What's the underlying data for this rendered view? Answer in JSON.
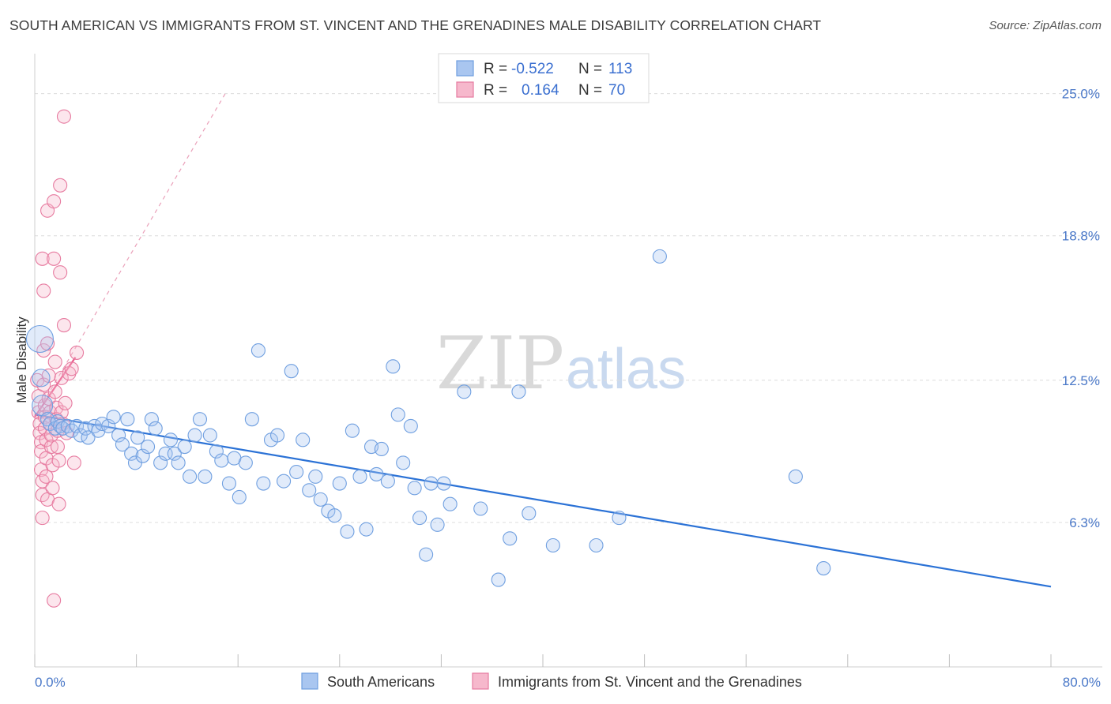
{
  "title": "SOUTH AMERICAN VS IMMIGRANTS FROM ST. VINCENT AND THE GRENADINES MALE DISABILITY CORRELATION CHART",
  "source": "Source: ZipAtlas.com",
  "watermark": {
    "zip": "ZIP",
    "atlas": "atlas"
  },
  "colors": {
    "blue": "#6f9fe0",
    "blue_fill": "#a9c6f0",
    "blue_line": "#2b72d6",
    "pink": "#e77ba0",
    "pink_fill": "#f6b8cc",
    "pink_line": "#e8588a",
    "tick_text": "#4a78c8"
  },
  "legend": {
    "rows": [
      {
        "r_label": "R =",
        "r_value": "-0.522",
        "n_label": "N =",
        "n_value": "113"
      },
      {
        "r_label": "R =",
        "r_value": "0.164",
        "n_label": "N =",
        "n_value": "70"
      }
    ]
  },
  "bottom_legend": [
    "South Americans",
    "Immigrants from St. Vincent and the Grenadines"
  ],
  "chart_data": {
    "type": "scatter",
    "ylabel": "Male Disability",
    "xlabel": "",
    "xlim": [
      0,
      80
    ],
    "ylim": [
      0,
      26.5
    ],
    "x_tick_labels": [
      "0.0%",
      "80.0%"
    ],
    "y_ticks": [
      6.3,
      12.5,
      18.8,
      25.0
    ],
    "y_tick_labels": [
      "6.3%",
      "12.5%",
      "18.8%",
      "25.0%"
    ],
    "grid": true,
    "series": [
      {
        "name": "South Americans",
        "color": "#6f9fe0",
        "trend": {
          "x": [
            0,
            80
          ],
          "y": [
            11.0,
            3.5
          ]
        },
        "points": [
          [
            0.4,
            14.3
          ],
          [
            0.5,
            12.6
          ],
          [
            0.6,
            11.4
          ],
          [
            1.0,
            10.8
          ],
          [
            1.2,
            10.6
          ],
          [
            1.6,
            10.4
          ],
          [
            1.8,
            10.7
          ],
          [
            2.0,
            10.5
          ],
          [
            2.2,
            10.4
          ],
          [
            2.6,
            10.5
          ],
          [
            2.9,
            10.3
          ],
          [
            3.3,
            10.5
          ],
          [
            3.6,
            10.1
          ],
          [
            4.0,
            10.4
          ],
          [
            4.2,
            10.0
          ],
          [
            4.7,
            10.5
          ],
          [
            5.0,
            10.3
          ],
          [
            5.3,
            10.6
          ],
          [
            5.8,
            10.5
          ],
          [
            6.2,
            10.9
          ],
          [
            6.6,
            10.1
          ],
          [
            6.9,
            9.7
          ],
          [
            7.3,
            10.8
          ],
          [
            7.6,
            9.3
          ],
          [
            7.9,
            8.9
          ],
          [
            8.1,
            10.0
          ],
          [
            8.5,
            9.2
          ],
          [
            8.9,
            9.6
          ],
          [
            9.2,
            10.8
          ],
          [
            9.5,
            10.4
          ],
          [
            9.9,
            8.9
          ],
          [
            10.3,
            9.3
          ],
          [
            10.7,
            9.9
          ],
          [
            11.0,
            9.3
          ],
          [
            11.3,
            8.9
          ],
          [
            11.8,
            9.6
          ],
          [
            12.2,
            8.3
          ],
          [
            12.6,
            10.1
          ],
          [
            13.0,
            10.8
          ],
          [
            13.4,
            8.3
          ],
          [
            13.8,
            10.1
          ],
          [
            14.3,
            9.4
          ],
          [
            14.7,
            9.0
          ],
          [
            15.3,
            8.0
          ],
          [
            15.7,
            9.1
          ],
          [
            16.1,
            7.4
          ],
          [
            16.6,
            8.9
          ],
          [
            17.1,
            10.8
          ],
          [
            17.6,
            13.8
          ],
          [
            18.0,
            8.0
          ],
          [
            18.6,
            9.9
          ],
          [
            19.1,
            10.1
          ],
          [
            19.6,
            8.1
          ],
          [
            20.2,
            12.9
          ],
          [
            20.6,
            8.5
          ],
          [
            21.1,
            9.9
          ],
          [
            21.6,
            7.7
          ],
          [
            22.1,
            8.3
          ],
          [
            22.5,
            7.3
          ],
          [
            23.1,
            6.8
          ],
          [
            23.6,
            6.6
          ],
          [
            24.0,
            8.0
          ],
          [
            24.6,
            5.9
          ],
          [
            25.0,
            10.3
          ],
          [
            25.6,
            8.3
          ],
          [
            26.1,
            6.0
          ],
          [
            26.5,
            9.6
          ],
          [
            26.9,
            8.4
          ],
          [
            27.3,
            9.5
          ],
          [
            27.8,
            8.1
          ],
          [
            28.2,
            13.1
          ],
          [
            28.6,
            11.0
          ],
          [
            29.0,
            8.9
          ],
          [
            29.6,
            10.5
          ],
          [
            29.9,
            7.8
          ],
          [
            30.3,
            6.5
          ],
          [
            30.8,
            4.9
          ],
          [
            31.2,
            8.0
          ],
          [
            31.7,
            6.2
          ],
          [
            32.2,
            8.0
          ],
          [
            32.7,
            7.1
          ],
          [
            33.8,
            12.0
          ],
          [
            35.1,
            6.9
          ],
          [
            36.5,
            3.8
          ],
          [
            37.4,
            5.6
          ],
          [
            38.1,
            12.0
          ],
          [
            38.9,
            6.7
          ],
          [
            40.8,
            5.3
          ],
          [
            44.2,
            5.3
          ],
          [
            46.0,
            6.5
          ],
          [
            49.2,
            17.9
          ],
          [
            59.9,
            8.3
          ],
          [
            62.1,
            4.3
          ]
        ]
      },
      {
        "name": "Immigrants from St. Vincent and the Grenadines",
        "color": "#e77ba0",
        "trend": {
          "x": [
            0,
            3.2
          ],
          "y": [
            10.9,
            13.5
          ]
        },
        "dashed": {
          "x": [
            0,
            15
          ],
          "y": [
            10.9,
            25.0
          ]
        },
        "points": [
          [
            0.2,
            12.5
          ],
          [
            0.3,
            11.8
          ],
          [
            0.3,
            11.1
          ],
          [
            0.4,
            10.6
          ],
          [
            0.4,
            10.2
          ],
          [
            0.5,
            9.8
          ],
          [
            0.5,
            9.4
          ],
          [
            0.5,
            8.6
          ],
          [
            0.6,
            8.1
          ],
          [
            0.6,
            7.5
          ],
          [
            0.6,
            6.5
          ],
          [
            0.6,
            17.8
          ],
          [
            0.7,
            16.4
          ],
          [
            0.7,
            13.8
          ],
          [
            0.7,
            12.3
          ],
          [
            0.8,
            11.4
          ],
          [
            0.8,
            10.9
          ],
          [
            0.8,
            10.4
          ],
          [
            0.9,
            9.9
          ],
          [
            0.9,
            9.1
          ],
          [
            0.9,
            8.3
          ],
          [
            1.0,
            7.3
          ],
          [
            1.0,
            19.9
          ],
          [
            1.0,
            14.1
          ],
          [
            1.1,
            12.7
          ],
          [
            1.1,
            11.7
          ],
          [
            1.2,
            11.1
          ],
          [
            1.2,
            10.6
          ],
          [
            1.3,
            10.1
          ],
          [
            1.3,
            9.6
          ],
          [
            1.4,
            8.8
          ],
          [
            1.4,
            7.8
          ],
          [
            1.5,
            2.9
          ],
          [
            1.5,
            20.3
          ],
          [
            1.5,
            17.8
          ],
          [
            1.6,
            13.3
          ],
          [
            1.6,
            12.0
          ],
          [
            1.7,
            11.3
          ],
          [
            1.7,
            10.8
          ],
          [
            1.8,
            10.3
          ],
          [
            1.8,
            9.6
          ],
          [
            1.9,
            9.0
          ],
          [
            1.9,
            7.1
          ],
          [
            2.0,
            21.0
          ],
          [
            2.0,
            17.2
          ],
          [
            2.1,
            12.6
          ],
          [
            2.1,
            11.1
          ],
          [
            2.2,
            10.6
          ],
          [
            2.3,
            24.0
          ],
          [
            2.3,
            14.9
          ],
          [
            2.4,
            11.5
          ],
          [
            2.5,
            10.2
          ],
          [
            2.7,
            12.8
          ],
          [
            2.9,
            13.0
          ],
          [
            3.1,
            8.9
          ],
          [
            3.3,
            13.7
          ]
        ]
      }
    ]
  }
}
